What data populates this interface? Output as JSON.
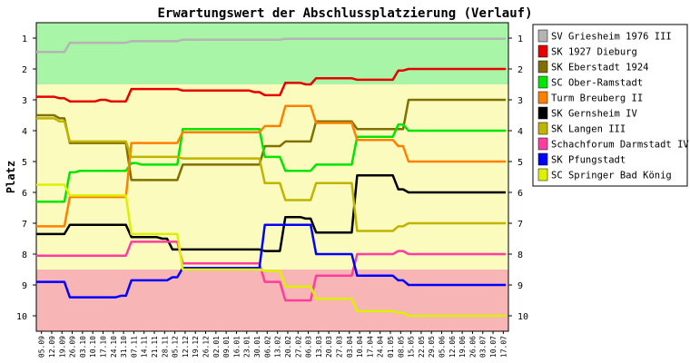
{
  "chart_data": {
    "type": "line",
    "title": "Erwartungswert der Abschlussplatzierung (Verlauf)",
    "ylabel": "Platz",
    "xlabel": "",
    "ylim": [
      10,
      1
    ],
    "y_ticks": [
      "1",
      "2",
      "3",
      "4",
      "5",
      "6",
      "7",
      "8",
      "9",
      "10"
    ],
    "grid": false,
    "legend_position": "right",
    "zones": [
      {
        "from": 0.5,
        "to": 2.5,
        "color": "#a8f5a8"
      },
      {
        "from": 2.5,
        "to": 8.5,
        "color": "#fbfbbd"
      },
      {
        "from": 8.5,
        "to": 10.5,
        "color": "#f7b5b5"
      }
    ],
    "x": [
      "05.09",
      "12.09",
      "19.09",
      "26.09",
      "03.10",
      "10.10",
      "17.10",
      "24.10",
      "31.10",
      "07.11",
      "14.11",
      "21.11",
      "28.11",
      "05.12",
      "12.12",
      "19.12",
      "26.12",
      "02.01",
      "09.01",
      "16.01",
      "23.01",
      "30.01",
      "06.02",
      "13.02",
      "20.02",
      "27.02",
      "06.03",
      "13.03",
      "20.03",
      "27.03",
      "03.04",
      "10.04",
      "17.04",
      "24.04",
      "01.05",
      "08.05",
      "15.05",
      "22.05",
      "29.05",
      "05.06",
      "12.06",
      "19.06",
      "26.06",
      "03.07",
      "10.07",
      "17.07"
    ],
    "series": [
      {
        "name": "SV Griesheim 1976 III",
        "color": "#b4b4b4",
        "values": [
          1.45,
          1.45,
          1.45,
          1.15,
          1.15,
          1.15,
          1.15,
          1.15,
          1.15,
          1.1,
          1.1,
          1.1,
          1.1,
          1.1,
          1.05,
          1.05,
          1.05,
          1.05,
          1.05,
          1.05,
          1.05,
          1.05,
          1.05,
          1.05,
          1.02,
          1.02,
          1.02,
          1.02,
          1.02,
          1.02,
          1.02,
          1.02,
          1.02,
          1.02,
          1.02,
          1.02,
          1.02,
          1.02,
          1.02,
          1.02,
          1.02,
          1.02,
          1.02,
          1.02,
          1.02,
          1.02
        ]
      },
      {
        "name": "SK 1927 Dieburg",
        "color": "#e60000",
        "values": [
          2.9,
          2.9,
          2.95,
          3.05,
          3.05,
          3.05,
          3.0,
          3.05,
          3.05,
          2.65,
          2.65,
          2.65,
          2.65,
          2.65,
          2.7,
          2.7,
          2.7,
          2.7,
          2.7,
          2.7,
          2.7,
          2.75,
          2.85,
          2.85,
          2.45,
          2.45,
          2.5,
          2.3,
          2.3,
          2.3,
          2.3,
          2.35,
          2.35,
          2.35,
          2.35,
          2.05,
          2.0,
          2.0,
          2.0,
          2.0,
          2.0,
          2.0,
          2.0,
          2.0,
          2.0,
          2.0
        ]
      },
      {
        "name": "SK Eberstadt 1924",
        "color": "#807000",
        "values": [
          3.5,
          3.5,
          3.6,
          4.4,
          4.4,
          4.4,
          4.4,
          4.4,
          4.4,
          5.6,
          5.6,
          5.6,
          5.6,
          5.6,
          5.1,
          5.1,
          5.1,
          5.1,
          5.1,
          5.1,
          5.1,
          5.1,
          4.5,
          4.5,
          4.35,
          4.35,
          4.35,
          3.7,
          3.7,
          3.7,
          3.7,
          3.95,
          3.95,
          3.95,
          3.95,
          3.95,
          3.0,
          3.0,
          3.0,
          3.0,
          3.0,
          3.0,
          3.0,
          3.0,
          3.0,
          3.0
        ]
      },
      {
        "name": "SC Ober-Ramstadt",
        "color": "#00e600",
        "values": [
          6.3,
          6.3,
          6.3,
          5.35,
          5.3,
          5.3,
          5.3,
          5.3,
          5.3,
          5.05,
          5.1,
          5.1,
          5.1,
          5.1,
          3.95,
          3.95,
          3.95,
          3.95,
          3.95,
          3.95,
          3.95,
          3.95,
          4.85,
          4.85,
          5.3,
          5.3,
          5.3,
          5.1,
          5.1,
          5.1,
          5.1,
          4.2,
          4.2,
          4.2,
          4.2,
          3.8,
          4.0,
          4.0,
          4.0,
          4.0,
          4.0,
          4.0,
          4.0,
          4.0,
          4.0,
          4.0
        ]
      },
      {
        "name": "Turm Breuberg II",
        "color": "#ff8000",
        "values": [
          7.1,
          7.1,
          7.1,
          6.15,
          6.15,
          6.15,
          6.15,
          6.15,
          6.15,
          4.4,
          4.4,
          4.4,
          4.4,
          4.4,
          4.05,
          4.05,
          4.05,
          4.05,
          4.05,
          4.05,
          4.05,
          4.05,
          3.85,
          3.85,
          3.2,
          3.2,
          3.2,
          3.75,
          3.75,
          3.75,
          3.75,
          4.3,
          4.3,
          4.3,
          4.3,
          4.5,
          5.0,
          5.0,
          5.0,
          5.0,
          5.0,
          5.0,
          5.0,
          5.0,
          5.0,
          5.0
        ]
      },
      {
        "name": "SK Gernsheim IV",
        "color": "#000000",
        "values": [
          7.35,
          7.35,
          7.35,
          7.05,
          7.05,
          7.05,
          7.05,
          7.05,
          7.05,
          7.45,
          7.45,
          7.45,
          7.5,
          7.85,
          7.85,
          7.85,
          7.85,
          7.85,
          7.85,
          7.85,
          7.85,
          7.85,
          7.9,
          7.9,
          6.8,
          6.8,
          6.85,
          7.3,
          7.3,
          7.3,
          7.3,
          5.45,
          5.45,
          5.45,
          5.45,
          5.9,
          6.0,
          6.0,
          6.0,
          6.0,
          6.0,
          6.0,
          6.0,
          6.0,
          6.0,
          6.0
        ]
      },
      {
        "name": "SK Langen III",
        "color": "#c0b400",
        "values": [
          3.6,
          3.6,
          3.7,
          4.35,
          4.35,
          4.35,
          4.35,
          4.35,
          4.35,
          4.85,
          4.85,
          4.85,
          4.85,
          4.85,
          4.9,
          4.9,
          4.9,
          4.9,
          4.9,
          4.9,
          4.9,
          4.9,
          5.7,
          5.7,
          6.25,
          6.25,
          6.25,
          5.7,
          5.7,
          5.7,
          5.7,
          7.25,
          7.25,
          7.25,
          7.25,
          7.1,
          7.0,
          7.0,
          7.0,
          7.0,
          7.0,
          7.0,
          7.0,
          7.0,
          7.0,
          7.0
        ]
      },
      {
        "name": "Schachforum Darmstadt IV",
        "color": "#ff3ca0",
        "values": [
          8.05,
          8.05,
          8.05,
          8.05,
          8.05,
          8.05,
          8.05,
          8.05,
          8.05,
          7.6,
          7.6,
          7.6,
          7.6,
          7.6,
          8.3,
          8.3,
          8.3,
          8.3,
          8.3,
          8.3,
          8.3,
          8.3,
          8.9,
          8.9,
          9.5,
          9.5,
          9.5,
          8.7,
          8.7,
          8.7,
          8.7,
          8.0,
          8.0,
          8.0,
          8.0,
          7.9,
          8.0,
          8.0,
          8.0,
          8.0,
          8.0,
          8.0,
          8.0,
          8.0,
          8.0,
          8.0
        ]
      },
      {
        "name": "SK Pfungstadt",
        "color": "#0000ff",
        "values": [
          8.9,
          8.9,
          8.9,
          9.4,
          9.4,
          9.4,
          9.4,
          9.4,
          9.35,
          8.85,
          8.85,
          8.85,
          8.85,
          8.75,
          8.45,
          8.45,
          8.45,
          8.45,
          8.45,
          8.45,
          8.45,
          8.45,
          7.05,
          7.05,
          7.05,
          7.05,
          7.05,
          8.0,
          8.0,
          8.0,
          8.0,
          8.7,
          8.7,
          8.7,
          8.7,
          8.85,
          9.0,
          9.0,
          9.0,
          9.0,
          9.0,
          9.0,
          9.0,
          9.0,
          9.0,
          9.0
        ]
      },
      {
        "name": "SC Springer Bad König",
        "color": "#dcf000",
        "values": [
          5.75,
          5.75,
          5.75,
          6.1,
          6.1,
          6.1,
          6.1,
          6.1,
          6.1,
          7.35,
          7.35,
          7.35,
          7.35,
          7.35,
          8.5,
          8.5,
          8.5,
          8.5,
          8.5,
          8.5,
          8.5,
          8.5,
          8.55,
          8.55,
          9.05,
          9.05,
          9.05,
          9.45,
          9.45,
          9.45,
          9.45,
          9.85,
          9.85,
          9.85,
          9.85,
          9.9,
          10.0,
          10.0,
          10.0,
          10.0,
          10.0,
          10.0,
          10.0,
          10.0,
          10.0,
          10.0
        ]
      }
    ]
  }
}
